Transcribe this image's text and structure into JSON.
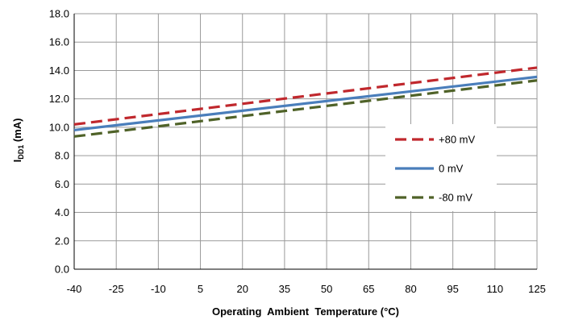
{
  "chart_data": {
    "type": "line",
    "title": "",
    "xlabel": "Operating  Ambient  Temperature (°C)",
    "ylabel_main": "I",
    "ylabel_sub": "DD1",
    "ylabel_suffix": " (mA)",
    "xlim": [
      -40,
      125
    ],
    "ylim": [
      0,
      18
    ],
    "x_ticks": [
      "-40",
      "-25",
      "-10",
      "5",
      "20",
      "35",
      "50",
      "65",
      "80",
      "95",
      "110",
      "125"
    ],
    "y_ticks": [
      "0.0",
      "2.0",
      "4.0",
      "6.0",
      "8.0",
      "10.0",
      "12.0",
      "14.0",
      "16.0",
      "18.0"
    ],
    "grid": true,
    "legend_position": "right",
    "series": [
      {
        "name": "+80 mV",
        "x": [
          -40,
          125
        ],
        "values": [
          10.2,
          14.2
        ],
        "color": "#c0282d",
        "style": "dashed"
      },
      {
        "name": "0 mV",
        "x": [
          -40,
          125
        ],
        "values": [
          9.8,
          13.55
        ],
        "color": "#4a7ebb",
        "style": "solid"
      },
      {
        "name": "-80 mV",
        "x": [
          -40,
          125
        ],
        "values": [
          9.35,
          13.3
        ],
        "color": "#4f6228",
        "style": "dashed"
      }
    ]
  }
}
